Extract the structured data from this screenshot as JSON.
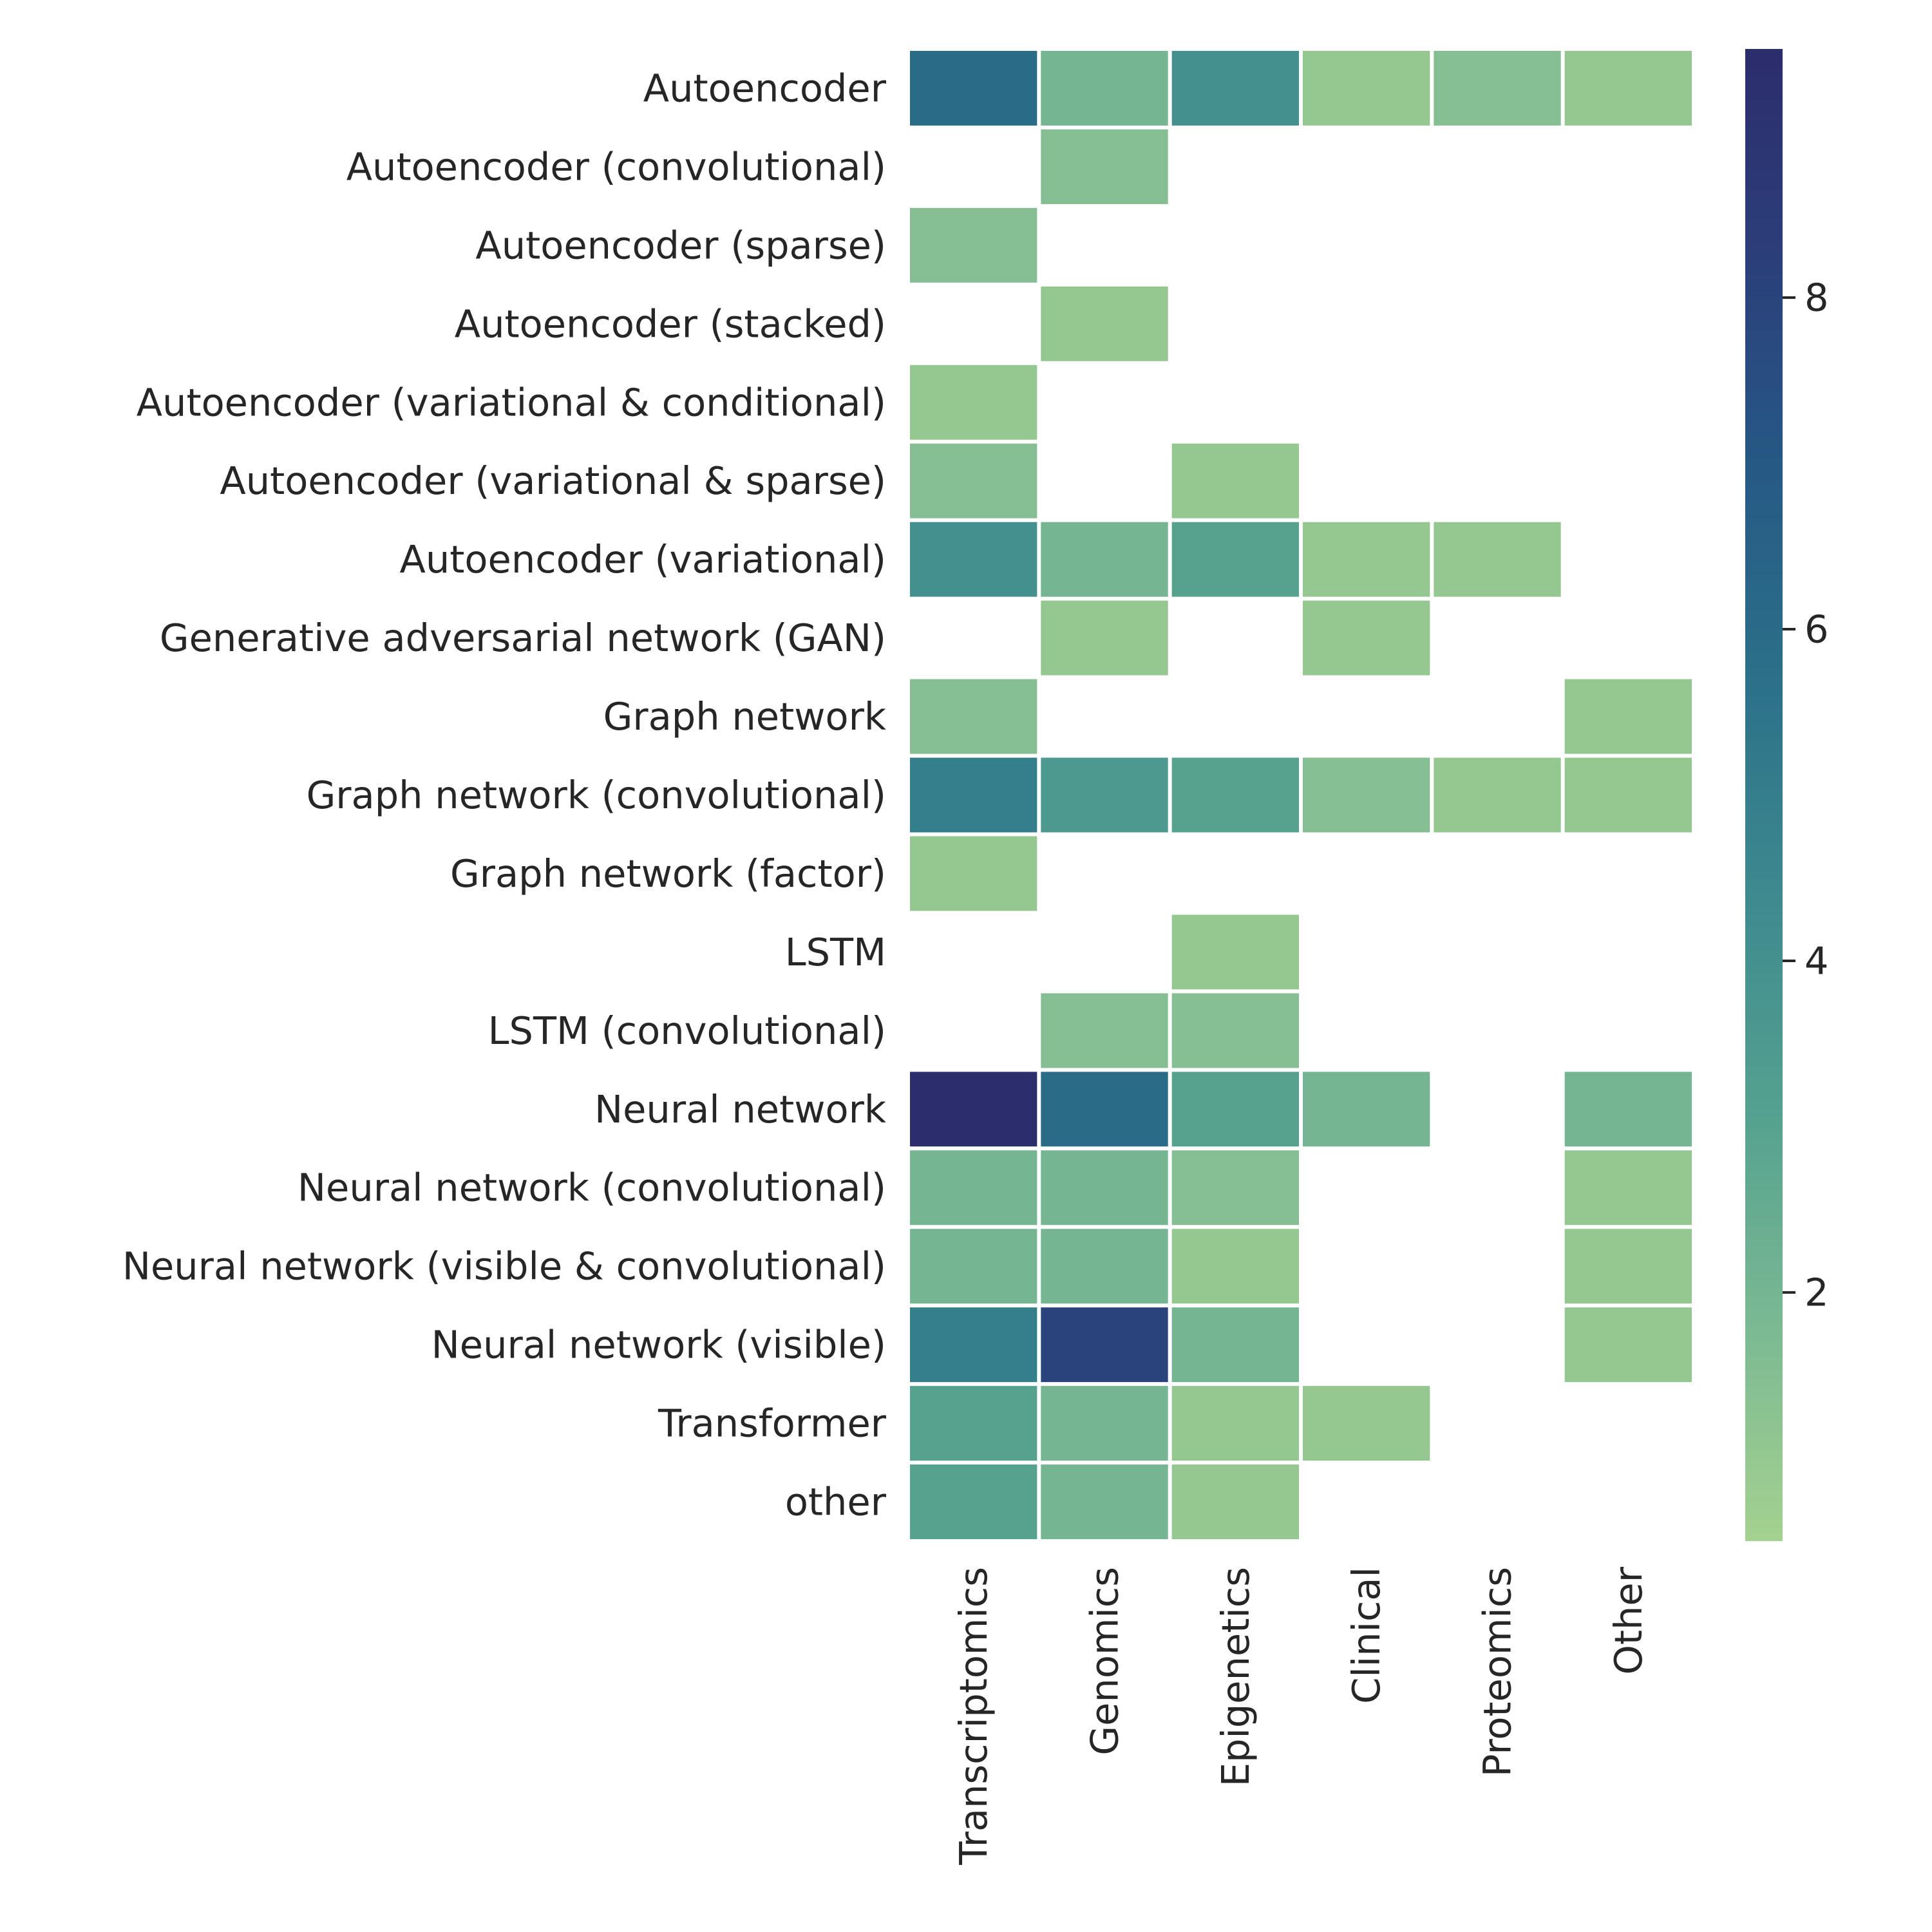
{
  "chart_data": {
    "type": "heatmap",
    "title": "",
    "xlabel": "",
    "ylabel": "",
    "rows": [
      "Autoencoder",
      "Autoencoder (convolutional)",
      "Autoencoder (sparse)",
      "Autoencoder (stacked)",
      "Autoencoder (variational & conditional)",
      "Autoencoder (variational & sparse)",
      "Autoencoder (variational)",
      "Generative adversarial network (GAN)",
      "Graph network",
      "Graph network (convolutional)",
      "Graph network (factor)",
      "LSTM",
      "LSTM (convolutional)",
      "Neural network",
      "Neural network (convolutional)",
      "Neural network (visible & convolutional)",
      "Neural network (visible)",
      "Transformer",
      "other"
    ],
    "columns": [
      "Transcriptomics",
      "Genomics",
      "Epigenetics",
      "Clinical",
      "Proteomics",
      "Other"
    ],
    "values": [
      [
        6,
        2,
        4,
        1,
        1.5,
        1
      ],
      [
        null,
        1.5,
        null,
        null,
        null,
        null
      ],
      [
        1.5,
        null,
        null,
        null,
        null,
        null
      ],
      [
        null,
        1,
        null,
        null,
        null,
        null
      ],
      [
        1,
        null,
        null,
        null,
        null,
        null
      ],
      [
        1.5,
        null,
        1,
        null,
        null,
        null
      ],
      [
        4,
        2,
        3,
        1,
        1,
        null
      ],
      [
        null,
        1,
        null,
        1,
        null,
        null
      ],
      [
        1.5,
        null,
        null,
        null,
        null,
        1
      ],
      [
        5,
        3.5,
        3,
        1.5,
        1,
        1
      ],
      [
        1,
        null,
        null,
        null,
        null,
        null
      ],
      [
        null,
        null,
        1,
        null,
        null,
        null
      ],
      [
        null,
        1.5,
        1.5,
        null,
        null,
        null
      ],
      [
        9.5,
        6,
        3,
        2,
        null,
        2
      ],
      [
        2,
        2,
        1.5,
        null,
        null,
        1
      ],
      [
        2,
        2,
        1,
        null,
        null,
        1
      ],
      [
        5,
        8,
        2,
        null,
        null,
        1
      ],
      [
        3,
        2,
        1,
        1,
        null,
        null
      ],
      [
        3,
        2,
        1,
        null,
        null,
        null
      ]
    ],
    "colorbar": {
      "vmin": 0.5,
      "vmax": 9.5,
      "ticks": [
        2,
        4,
        6,
        8
      ],
      "tick_labels": [
        "2",
        "4",
        "6",
        "8"
      ],
      "palette": "crest",
      "colors": [
        "#a5d190",
        "#7bb993",
        "#55a18f",
        "#3e8a8f",
        "#2c7189",
        "#265a85",
        "#2b3f7a",
        "#2c2d6b"
      ]
    },
    "grid": false,
    "legend": "colorbar-right"
  }
}
